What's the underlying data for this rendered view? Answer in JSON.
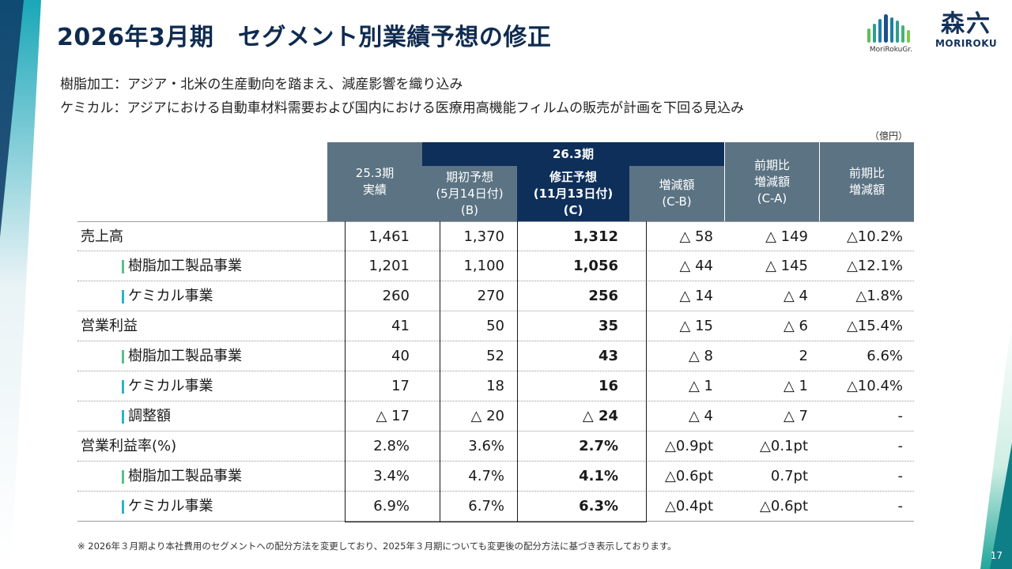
{
  "title": "2026年3月期　セグメント別業績予想の修正",
  "logos": {
    "group_caption": "MoriRokuGr.",
    "company_kanji": "森六",
    "company_romaji": "MORIROKU"
  },
  "notes": [
    "樹脂加工：アジア・北米の生産動向を踏まえ、減産影響を織り込み",
    "ケミカル：アジアにおける自動車材料需要および国内における医療用高機能フィルムの販売が計画を下回る見込み"
  ],
  "unit": "（億円）",
  "header": {
    "col_actual": [
      "25.3期",
      "実績"
    ],
    "period_group": "26.3期",
    "col_initial": [
      "期初予想",
      "(5月14日付)",
      "(B)"
    ],
    "col_revised": [
      "修正予想",
      "(11月13日付)",
      "(C)"
    ],
    "col_diff": [
      "増減額",
      "(C-B)"
    ],
    "col_yoy": [
      "前期比",
      "増減額",
      "(C-A)"
    ],
    "col_yoy_rate": [
      "前期比",
      "増減額"
    ]
  },
  "rows": [
    {
      "label": "売上高",
      "sub": false,
      "values": [
        "1,461",
        "1,370",
        "1,312",
        "△ 58",
        "△ 149",
        "△10.2%"
      ]
    },
    {
      "label": "樹脂加工製品事業",
      "sub": true,
      "bar": "green",
      "values": [
        "1,201",
        "1,100",
        "1,056",
        "△ 44",
        "△ 145",
        "△12.1%"
      ]
    },
    {
      "label": "ケミカル事業",
      "sub": true,
      "bar": "teal",
      "values": [
        "260",
        "270",
        "256",
        "△ 14",
        "△ 4",
        "△1.8%"
      ]
    },
    {
      "label": "営業利益",
      "sub": false,
      "values": [
        "41",
        "50",
        "35",
        "△ 15",
        "△ 6",
        "△15.4%"
      ]
    },
    {
      "label": "樹脂加工製品事業",
      "sub": true,
      "bar": "green",
      "values": [
        "40",
        "52",
        "43",
        "△ 8",
        "2",
        "6.6%"
      ]
    },
    {
      "label": "ケミカル事業",
      "sub": true,
      "bar": "teal",
      "values": [
        "17",
        "18",
        "16",
        "△ 1",
        "△ 1",
        "△10.4%"
      ]
    },
    {
      "label": "調整額",
      "sub": true,
      "bar": "teal",
      "values": [
        "△ 17",
        "△ 20",
        "△ 24",
        "△ 4",
        "△ 7",
        "-"
      ]
    },
    {
      "label": "営業利益率(%)",
      "sub": false,
      "values": [
        "2.8%",
        "3.6%",
        "2.7%",
        "△0.9pt",
        "△0.1pt",
        "-"
      ]
    },
    {
      "label": "樹脂加工製品事業",
      "sub": true,
      "bar": "green",
      "values": [
        "3.4%",
        "4.7%",
        "4.1%",
        "△0.6pt",
        "0.7pt",
        "-"
      ]
    },
    {
      "label": "ケミカル事業",
      "sub": true,
      "bar": "teal",
      "values": [
        "6.9%",
        "6.7%",
        "6.3%",
        "△0.4pt",
        "△0.6pt",
        "-"
      ]
    }
  ],
  "footnote": "※ 2026年３月期より本社費用のセグメントへの配分方法を変更しており、2025年３月期についても変更後の配分方法に基づき表示しております。",
  "page_number": "17",
  "colors": {
    "navy": "#0e2f5a",
    "header_grey": "#5b7383",
    "bar_green": "#56c08a",
    "bar_teal": "#2bb4c4"
  }
}
